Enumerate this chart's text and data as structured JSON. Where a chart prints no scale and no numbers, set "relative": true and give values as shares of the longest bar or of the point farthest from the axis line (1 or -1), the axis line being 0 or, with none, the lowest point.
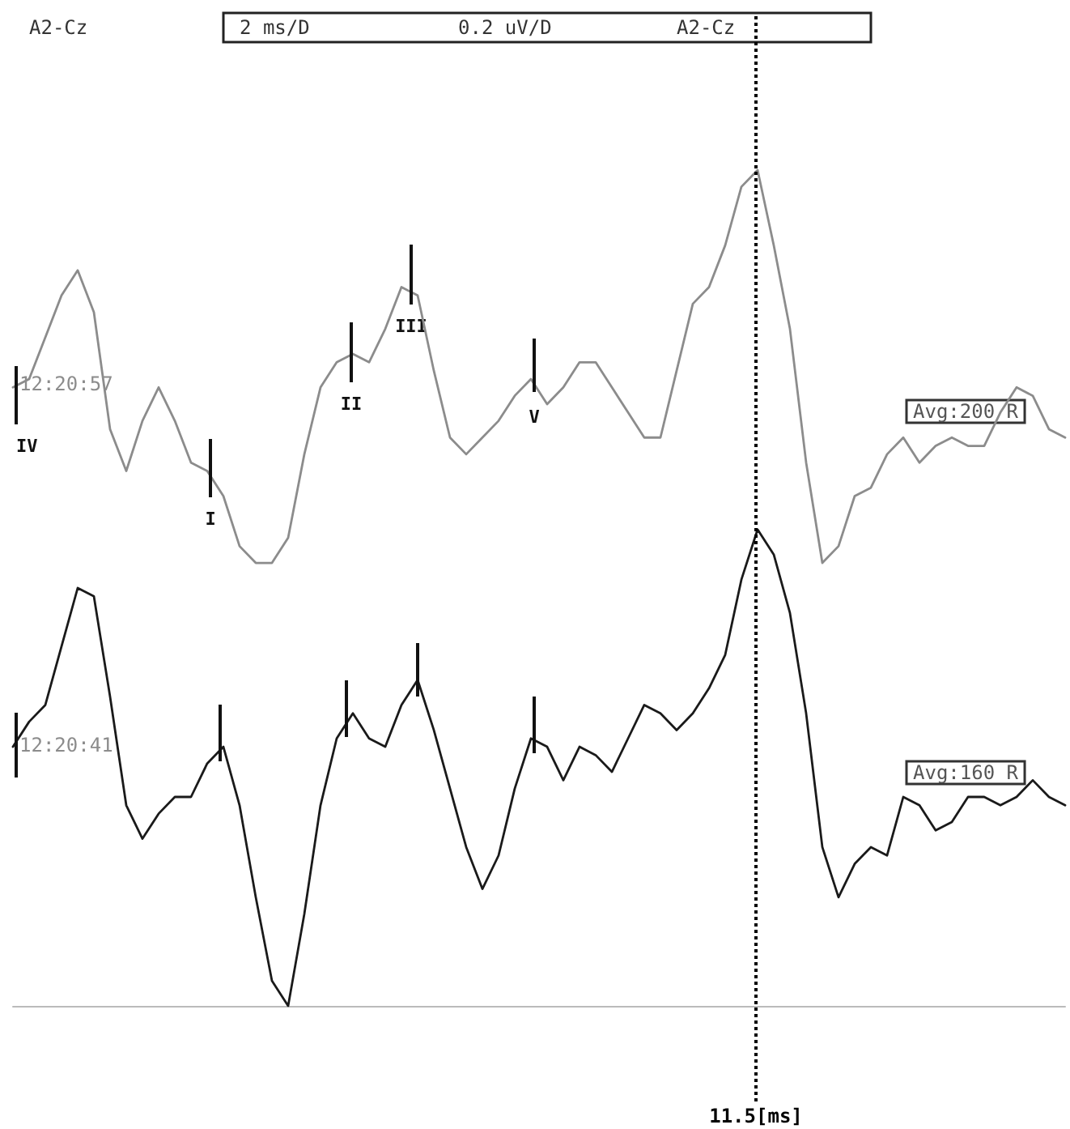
{
  "chart_data": {
    "type": "line",
    "relative": true,
    "categories": [
      null,
      null,
      null,
      null,
      null,
      null,
      null,
      null,
      null,
      null,
      null,
      null,
      null,
      null,
      null,
      null,
      null,
      null,
      null,
      null,
      null,
      null,
      null,
      null,
      null,
      null,
      null,
      null,
      null,
      null,
      null,
      null,
      null,
      null,
      null,
      null,
      null,
      null,
      null,
      null,
      null,
      null,
      null,
      null,
      null,
      null,
      null,
      null,
      null,
      null,
      null,
      null,
      null,
      null,
      null,
      null,
      null,
      null,
      null,
      null,
      null,
      null,
      null,
      null,
      null,
      null
    ],
    "marker": "none",
    "line_style": "solid",
    "series": [
      {
        "color": "#8c8c8c",
        "values": [
          0.74,
          0.75,
          0.8,
          0.85,
          0.88,
          0.83,
          0.69,
          0.64,
          0.7,
          0.74,
          0.7,
          0.65,
          0.64,
          0.61,
          0.55,
          0.53,
          0.53,
          0.56,
          0.66,
          0.74,
          0.77,
          0.78,
          0.77,
          0.81,
          0.86,
          0.85,
          0.76,
          0.68,
          0.66,
          0.68,
          0.7,
          0.73,
          0.75,
          0.72,
          0.74,
          0.77,
          0.77,
          0.74,
          0.71,
          0.68,
          0.68,
          0.76,
          0.84,
          0.86,
          0.91,
          0.98,
          1,
          0.91,
          0.81,
          0.65,
          0.53,
          0.55,
          0.61,
          0.62,
          0.66,
          0.68,
          0.65,
          0.67,
          0.68,
          0.67,
          0.67,
          0.71,
          0.74,
          0.73,
          0.69,
          0.68
        ]
      },
      {
        "color": "#1a1a1a",
        "values": [
          0.31,
          0.34,
          0.36,
          0.43,
          0.5,
          0.49,
          0.37,
          0.24,
          0.2,
          0.23,
          0.25,
          0.25,
          0.29,
          0.31,
          0.24,
          0.13,
          0.03,
          0,
          0.11,
          0.24,
          0.32,
          0.35,
          0.32,
          0.31,
          0.36,
          0.39,
          0.33,
          0.26,
          0.19,
          0.14,
          0.18,
          0.26,
          0.32,
          0.31,
          0.27,
          0.31,
          0.3,
          0.28,
          0.32,
          0.36,
          0.35,
          0.33,
          0.35,
          0.38,
          0.42,
          0.51,
          0.57,
          0.54,
          0.47,
          0.35,
          0.19,
          0.13,
          0.17,
          0.19,
          0.18,
          0.25,
          0.24,
          0.21,
          0.22,
          0.25,
          0.25,
          0.24,
          0.25,
          0.27,
          0.25,
          0.24
        ]
      }
    ],
    "annotations": [
      "A2-Cz",
      "2 ms/D",
      "0.2 uV/D",
      "A2-Cz",
      "IV",
      "I",
      "II",
      "III",
      "V",
      "12:20:57",
      "12:20:41",
      "Avg:200 R",
      "Avg:160 R",
      "11.5[ms]"
    ]
  }
}
